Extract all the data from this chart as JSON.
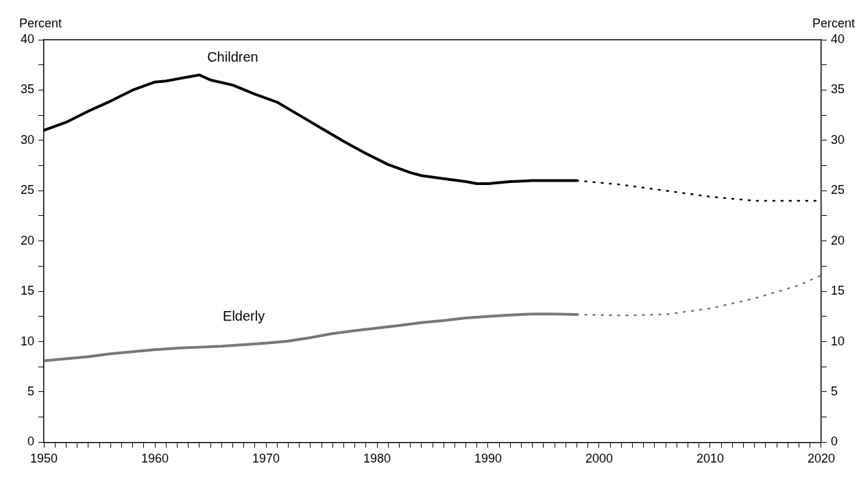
{
  "chart_data": {
    "type": "line",
    "ylabel": "Percent",
    "y2label": "Percent",
    "xlim": [
      1950,
      2020
    ],
    "xticks": [
      1950,
      {
        "value": 1951,
        "label": null
      },
      {
        "value": 1952,
        "label": null
      },
      {
        "value": 1953,
        "label": null
      },
      {
        "value": 1954,
        "label": null
      },
      {
        "value": 1955,
        "label": null
      },
      {
        "value": 1956,
        "label": null
      },
      {
        "value": 1957,
        "label": null
      },
      {
        "value": 1958,
        "label": null
      },
      {
        "value": 1959,
        "label": null
      },
      1960,
      {
        "value": 1961,
        "label": null
      },
      {
        "value": 1962,
        "label": null
      },
      {
        "value": 1963,
        "label": null
      },
      {
        "value": 1964,
        "label": null
      },
      {
        "value": 1965,
        "label": null
      },
      {
        "value": 1966,
        "label": null
      },
      {
        "value": 1967,
        "label": null
      },
      {
        "value": 1968,
        "label": null
      },
      {
        "value": 1969,
        "label": null
      },
      1970,
      {
        "value": 1971,
        "label": null
      },
      {
        "value": 1972,
        "label": null
      },
      {
        "value": 1973,
        "label": null
      },
      {
        "value": 1974,
        "label": null
      },
      {
        "value": 1975,
        "label": null
      },
      {
        "value": 1976,
        "label": null
      },
      {
        "value": 1977,
        "label": null
      },
      {
        "value": 1978,
        "label": null
      },
      {
        "value": 1979,
        "label": null
      },
      1980,
      {
        "value": 1981,
        "label": null
      },
      {
        "value": 1982,
        "label": null
      },
      {
        "value": 1983,
        "label": null
      },
      {
        "value": 1984,
        "label": null
      },
      {
        "value": 1985,
        "label": null
      },
      {
        "value": 1986,
        "label": null
      },
      {
        "value": 1987,
        "label": null
      },
      {
        "value": 1988,
        "label": null
      },
      {
        "value": 1989,
        "label": null
      },
      1990,
      {
        "value": 1991,
        "label": null
      },
      {
        "value": 1992,
        "label": null
      },
      {
        "value": 1993,
        "label": null
      },
      {
        "value": 1994,
        "label": null
      },
      {
        "value": 1995,
        "label": null
      },
      {
        "value": 1996,
        "label": null
      },
      {
        "value": 1997,
        "label": null
      },
      {
        "value": 1998,
        "label": null
      },
      {
        "value": 1999,
        "label": null
      },
      2000,
      {
        "value": 2001,
        "label": null
      },
      {
        "value": 2002,
        "label": null
      },
      {
        "value": 2003,
        "label": null
      },
      {
        "value": 2004,
        "label": null
      },
      {
        "value": 2005,
        "label": null
      },
      {
        "value": 2006,
        "label": null
      },
      {
        "value": 2007,
        "label": null
      },
      {
        "value": 2008,
        "label": null
      },
      {
        "value": 2009,
        "label": null
      },
      2010,
      {
        "value": 2011,
        "label": null
      },
      {
        "value": 2012,
        "label": null
      },
      {
        "value": 2013,
        "label": null
      },
      {
        "value": 2014,
        "label": null
      },
      {
        "value": 2015,
        "label": null
      },
      {
        "value": 2016,
        "label": null
      },
      {
        "value": 2017,
        "label": null
      },
      {
        "value": 2018,
        "label": null
      },
      {
        "value": 2019,
        "label": null
      },
      2020
    ],
    "ylim": [
      0,
      40
    ],
    "yticks": [
      0,
      {
        "value": 2.5,
        "label": null
      },
      5,
      {
        "value": 7.5,
        "label": null
      },
      10,
      {
        "value": 12.5,
        "label": null
      },
      15,
      {
        "value": 17.5,
        "label": null
      },
      20,
      {
        "value": 22.5,
        "label": null
      },
      25,
      {
        "value": 27.5,
        "label": null
      },
      30,
      {
        "value": 32.5,
        "label": null
      },
      35,
      {
        "value": 37.5,
        "label": null
      },
      40
    ],
    "y2lim": [
      0,
      40
    ],
    "y2ticks": [
      0,
      {
        "value": 2.5,
        "label": null
      },
      5,
      {
        "value": 7.5,
        "label": null
      },
      10,
      {
        "value": 12.5,
        "label": null
      },
      15,
      {
        "value": 17.5,
        "label": null
      },
      20,
      {
        "value": 22.5,
        "label": null
      },
      25,
      {
        "value": 27.5,
        "label": null
      },
      30,
      {
        "value": 32.5,
        "label": null
      },
      35,
      {
        "value": 37.5,
        "label": null
      },
      40
    ],
    "grid": false,
    "legend": false,
    "marker": "none",
    "series": [
      {
        "name": "Children",
        "color": "#000000",
        "line_style": "solid",
        "x": [
          1950,
          1952,
          1954,
          1956,
          1958,
          1960,
          1961,
          1963,
          1964,
          1965,
          1967,
          1969,
          1971,
          1973,
          1975,
          1977,
          1979,
          1981,
          1983,
          1984,
          1986,
          1988,
          1989,
          1990,
          1992,
          1994,
          1996,
          1998
        ],
        "values": [
          31.0,
          31.8,
          32.9,
          33.9,
          35.0,
          35.8,
          35.9,
          36.3,
          36.5,
          36.0,
          35.5,
          34.6,
          33.8,
          32.5,
          31.2,
          29.9,
          28.7,
          27.6,
          26.8,
          26.5,
          26.2,
          25.9,
          25.7,
          25.7,
          25.9,
          26.0,
          26.0,
          26.0
        ]
      },
      {
        "color": "#000000",
        "line_style": "dotted",
        "x": [
          1998,
          2002,
          2006,
          2010,
          2014,
          2018,
          2020
        ],
        "values": [
          26.0,
          25.6,
          25.0,
          24.4,
          24.0,
          24.0,
          24.0
        ]
      },
      {
        "name": "Elderly",
        "color": "#777777",
        "line_style": "solid",
        "x": [
          1950,
          1952,
          1954,
          1956,
          1958,
          1960,
          1962,
          1964,
          1966,
          1968,
          1970,
          1972,
          1974,
          1976,
          1978,
          1980,
          1982,
          1984,
          1986,
          1988,
          1990,
          1992,
          1994,
          1996,
          1998
        ],
        "values": [
          8.1,
          8.3,
          8.5,
          8.8,
          9.0,
          9.2,
          9.35,
          9.45,
          9.55,
          9.7,
          9.85,
          10.05,
          10.4,
          10.8,
          11.1,
          11.35,
          11.6,
          11.9,
          12.1,
          12.35,
          12.5,
          12.65,
          12.75,
          12.75,
          12.7
        ]
      },
      {
        "color": "#777777",
        "line_style": "dotted",
        "x": [
          1998,
          2002,
          2006,
          2010,
          2014,
          2018,
          2020
        ],
        "values": [
          12.7,
          12.6,
          12.7,
          13.3,
          14.3,
          15.6,
          16.6
        ]
      }
    ]
  }
}
